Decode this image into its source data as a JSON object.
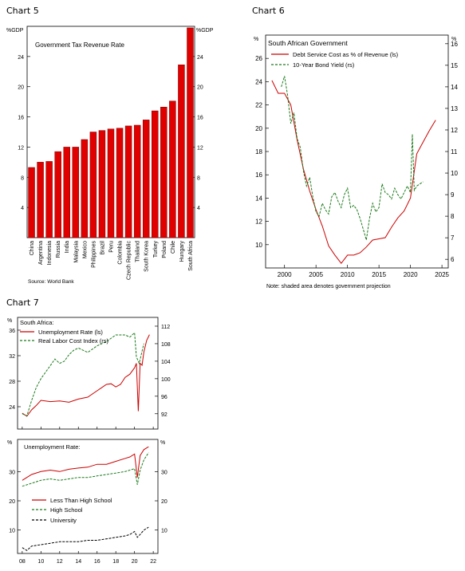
{
  "chart_titles": [
    "Chart 5",
    "Chart 6",
    "Chart 7"
  ],
  "chart_data": [
    {
      "type": "bar",
      "title": "Government Tax Revenue Rate",
      "unit_left": "%GDP",
      "unit_right": "%GDP",
      "source": "Source: World Bank",
      "ylim": [
        0,
        28
      ],
      "yticks": [
        4,
        8,
        12,
        16,
        20,
        24
      ],
      "categories": [
        "China",
        "Argentina",
        "Indonesia",
        "Russia",
        "India",
        "Malaysia",
        "Mexico",
        "Philippines",
        "Brazil",
        "Peru",
        "Colombia",
        "Czech Republic",
        "Thailand",
        "South Korea",
        "Turkey",
        "Poland",
        "Chile",
        "Hungary",
        "South Africa"
      ],
      "values": [
        9.3,
        10.0,
        10.1,
        11.4,
        12.0,
        12.0,
        13.0,
        14.0,
        14.2,
        14.4,
        14.5,
        14.8,
        14.9,
        15.6,
        16.8,
        17.3,
        18.1,
        22.9,
        27.8
      ],
      "bar_color": "#e00000",
      "grid": false
    },
    {
      "type": "line",
      "title": "South African Government",
      "unit_left": "%",
      "unit_right": "%",
      "note": "Note: shaded area denotes government projection",
      "xlim": [
        1997,
        2026
      ],
      "xticks": [
        2000,
        2005,
        2010,
        2015,
        2020,
        2025
      ],
      "ylim_left": [
        8,
        28
      ],
      "yticks_left": [
        10,
        12,
        14,
        16,
        18,
        20,
        22,
        24,
        26
      ],
      "ylim_right": [
        5.6,
        16.4
      ],
      "yticks_right": [
        6,
        7,
        8,
        9,
        10,
        11,
        12,
        13,
        14,
        15,
        16
      ],
      "series": [
        {
          "name": "Debt Service Cost as % of Revenue (ls)",
          "axis": "left",
          "color": "#cc0000",
          "dash": "solid",
          "x": [
            1998,
            1999,
            2000,
            2001,
            2002,
            2003,
            2004,
            2005,
            2006,
            2007,
            2008,
            2009,
            2010,
            2011,
            2012,
            2013,
            2014,
            2015,
            2016,
            2017,
            2018,
            2019,
            2020,
            2021,
            2022,
            2023,
            2024
          ],
          "y": [
            24.1,
            23.0,
            23.0,
            22.0,
            19.0,
            16.5,
            14.6,
            13.0,
            11.6,
            9.9,
            9.1,
            8.4,
            9.1,
            9.1,
            9.3,
            9.8,
            10.4,
            10.5,
            10.6,
            11.5,
            12.3,
            12.9,
            14.0,
            17.8,
            18.8,
            19.8,
            20.7
          ]
        },
        {
          "name": "10-Year Bond Yield (rs)",
          "axis": "right",
          "color": "#1a7a1a",
          "dash": "dashed",
          "x": [
            1999.5,
            2000,
            2000.5,
            2001,
            2001.5,
            2002,
            2002.5,
            2003,
            2003.5,
            2004,
            2004.5,
            2005,
            2005.5,
            2006,
            2006.5,
            2007,
            2007.5,
            2008,
            2008.5,
            2009,
            2009.5,
            2010,
            2010.5,
            2011,
            2011.5,
            2012,
            2012.5,
            2013,
            2013.5,
            2014,
            2014.5,
            2015,
            2015.5,
            2016,
            2016.5,
            2017,
            2017.5,
            2018,
            2018.5,
            2019,
            2019.5,
            2020,
            2020.3,
            2020.6,
            2021,
            2021.5,
            2022
          ],
          "y": [
            14.0,
            14.5,
            13.6,
            12.3,
            12.8,
            11.6,
            11.2,
            10.1,
            9.4,
            9.8,
            8.9,
            8.2,
            8.0,
            8.6,
            8.3,
            8.1,
            8.9,
            9.1,
            8.7,
            8.4,
            9.0,
            9.3,
            8.4,
            8.5,
            8.3,
            7.9,
            7.4,
            6.9,
            7.9,
            8.6,
            8.2,
            8.4,
            9.5,
            9.1,
            9.0,
            8.8,
            9.3,
            9.0,
            8.8,
            9.1,
            9.4,
            9.1,
            11.8,
            9.2,
            9.4,
            9.5,
            9.6
          ]
        }
      ]
    },
    [
      {
        "type": "line",
        "title": "South Africa:",
        "unit_left": "%",
        "xlim": [
          2007.5,
          2022.5
        ],
        "ylim_left": [
          20.5,
          38
        ],
        "yticks_left": [
          24,
          28,
          32,
          36
        ],
        "ylim_right": [
          88.5,
          114
        ],
        "yticks_right": [
          92,
          96,
          100,
          104,
          108,
          112
        ],
        "series": [
          {
            "name": "Unemployment Rate (ls)",
            "axis": "left",
            "color": "#cc0000",
            "dash": "solid",
            "x": [
              2008,
              2008.5,
              2009,
              2009.5,
              2010,
              2011,
              2012,
              2013,
              2014,
              2015,
              2016,
              2017,
              2017.5,
              2018,
              2018.5,
              2019,
              2019.5,
              2020,
              2020.2,
              2020.4,
              2020.6,
              2020.8,
              2021,
              2021.3,
              2021.6
            ],
            "y": [
              23.0,
              22.5,
              23.5,
              24.2,
              25.0,
              24.8,
              24.9,
              24.7,
              25.2,
              25.5,
              26.5,
              27.5,
              27.6,
              27.1,
              27.5,
              28.6,
              29.1,
              30.1,
              30.8,
              23.3,
              30.8,
              30.5,
              32.6,
              34.4,
              35.3
            ]
          },
          {
            "name": "Real Labor Cost Index (rs)",
            "axis": "right",
            "color": "#1a7a1a",
            "dash": "dashed",
            "x": [
              2008,
              2008.5,
              2009,
              2009.5,
              2010,
              2010.5,
              2011,
              2011.5,
              2012,
              2012.5,
              2013,
              2013.5,
              2014,
              2015,
              2016,
              2017,
              2018,
              2019,
              2019.5,
              2020,
              2020.2,
              2020.5,
              2021
            ],
            "y": [
              92.0,
              91.5,
              95.0,
              98.0,
              100.0,
              101.5,
              103.0,
              104.5,
              103.5,
              104.0,
              105.5,
              106.5,
              107.0,
              106.0,
              107.5,
              108.5,
              110.0,
              110.0,
              109.5,
              110.5,
              105.0,
              103.5,
              108.0
            ]
          }
        ]
      },
      {
        "type": "line",
        "title": "Unemployment Rate:",
        "unit_left": "%",
        "unit_right": "%",
        "xlim": [
          2007.5,
          2022.5
        ],
        "xticks": [
          2008,
          2010,
          2012,
          2014,
          2016,
          2018,
          2020,
          2022
        ],
        "xtick_labels": [
          "08",
          "10",
          "12",
          "14",
          "16",
          "18",
          "20",
          "22"
        ],
        "ylim": [
          2,
          41
        ],
        "yticks": [
          10,
          20,
          30
        ],
        "series": [
          {
            "name": "Less Than High School",
            "color": "#cc0000",
            "dash": "solid",
            "x": [
              2008,
              2009,
              2010,
              2011,
              2012,
              2013,
              2014,
              2015,
              2016,
              2017,
              2018,
              2019,
              2019.5,
              2020,
              2020.3,
              2020.6,
              2021,
              2021.5
            ],
            "y": [
              27.0,
              29.0,
              30.0,
              30.5,
              30.0,
              30.8,
              31.2,
              31.5,
              32.5,
              32.5,
              33.5,
              34.5,
              35.0,
              36.0,
              28.0,
              35.5,
              37.5,
              38.5
            ]
          },
          {
            "name": "High School",
            "color": "#1a7a1a",
            "dash": "dashed",
            "x": [
              2008,
              2009,
              2010,
              2011,
              2012,
              2013,
              2014,
              2015,
              2016,
              2017,
              2018,
              2019,
              2019.5,
              2020,
              2020.3,
              2020.6,
              2021,
              2021.5
            ],
            "y": [
              25.0,
              26.0,
              27.0,
              27.5,
              27.0,
              27.5,
              28.0,
              28.0,
              28.5,
              29.0,
              29.5,
              30.0,
              30.5,
              31.0,
              25.5,
              30.5,
              34.0,
              36.5
            ]
          },
          {
            "name": "University",
            "color": "#000000",
            "dash": "dashed",
            "x": [
              2008,
              2008.5,
              2009,
              2010,
              2011,
              2012,
              2013,
              2014,
              2015,
              2016,
              2017,
              2018,
              2019,
              2019.5,
              2020,
              2020.3,
              2020.6,
              2021,
              2021.5
            ],
            "y": [
              4.0,
              3.0,
              4.5,
              5.0,
              5.5,
              6.0,
              6.0,
              6.0,
              6.5,
              6.5,
              7.0,
              7.5,
              8.0,
              8.5,
              9.5,
              7.5,
              8.5,
              10.0,
              11.0
            ]
          }
        ]
      }
    ]
  ]
}
